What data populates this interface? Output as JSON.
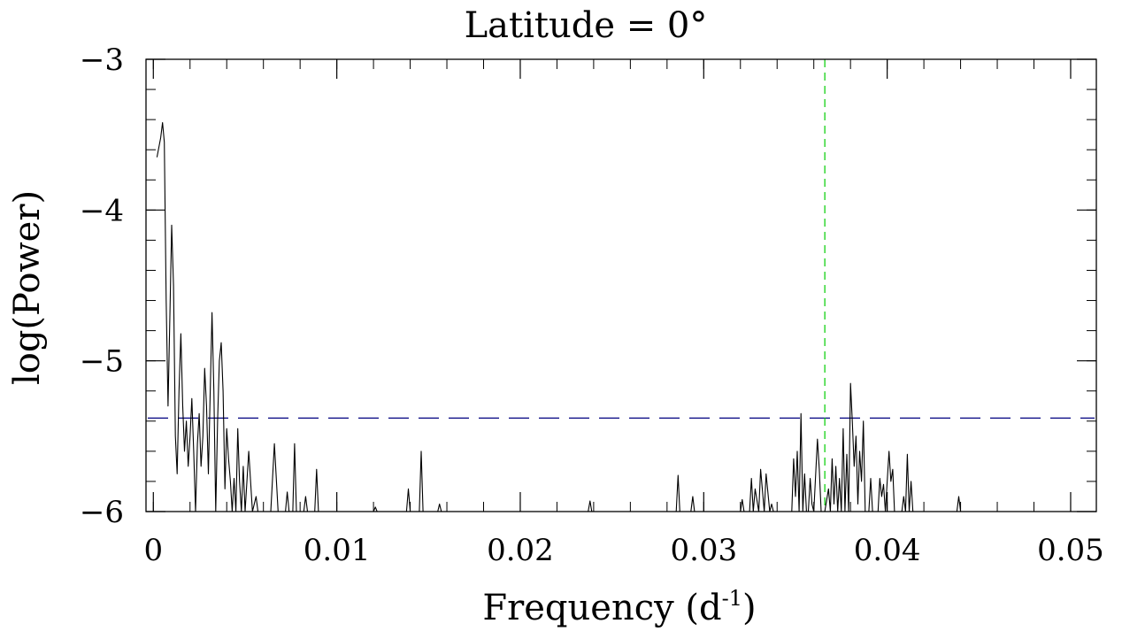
{
  "chart_data": {
    "type": "line",
    "title": "Latitude = 0°",
    "xlabel": "Frequency (d⁻¹)",
    "xlabel_main": "Frequency (d",
    "xlabel_sup": "-1",
    "xlabel_close": ")",
    "ylabel": "log(Power)",
    "xlim": [
      -0.0004,
      0.0514
    ],
    "ylim": [
      -6,
      -3
    ],
    "x_ticks": [
      0,
      0.01,
      0.02,
      0.03,
      0.04,
      0.05
    ],
    "x_tick_labels": [
      "0",
      "0.01",
      "0.02",
      "0.03",
      "0.04",
      "0.05"
    ],
    "y_ticks": [
      -3,
      -4,
      -5,
      -6
    ],
    "y_tick_labels": [
      "−3",
      "−4",
      "−5",
      "−6"
    ],
    "x_minor_step": 0.002,
    "y_minor_step": 0.2,
    "grid": false,
    "legend": "none",
    "colors": {
      "series": "#000000",
      "threshold": "#000080",
      "marker": "#00cc00"
    },
    "threshold_level": -5.38,
    "marker_frequency": 0.0366,
    "series": [
      {
        "values": [
          [
            0.0002,
            -3.65
          ],
          [
            0.0004,
            -3.52
          ],
          [
            0.0005,
            -3.42
          ],
          [
            0.0006,
            -3.55
          ],
          [
            0.0007,
            -4.6
          ],
          [
            0.0008,
            -5.3
          ],
          [
            0.0009,
            -4.7
          ],
          [
            0.001,
            -4.1
          ],
          [
            0.0011,
            -4.5
          ],
          [
            0.0012,
            -5.5
          ],
          [
            0.0013,
            -5.75
          ],
          [
            0.0014,
            -5.2
          ],
          [
            0.0015,
            -4.82
          ],
          [
            0.0016,
            -5.3
          ],
          [
            0.0017,
            -5.6
          ],
          [
            0.0018,
            -5.4
          ],
          [
            0.0019,
            -5.7
          ],
          [
            0.002,
            -5.5
          ],
          [
            0.0021,
            -5.25
          ],
          [
            0.0022,
            -5.6
          ],
          [
            0.0023,
            -6.0
          ],
          [
            0.0024,
            -5.55
          ],
          [
            0.0025,
            -5.35
          ],
          [
            0.0026,
            -5.7
          ],
          [
            0.0027,
            -5.5
          ],
          [
            0.0028,
            -5.05
          ],
          [
            0.0029,
            -5.3
          ],
          [
            0.003,
            -5.75
          ],
          [
            0.0031,
            -5.2
          ],
          [
            0.0032,
            -4.68
          ],
          [
            0.0033,
            -5.2
          ],
          [
            0.0034,
            -6.0
          ],
          [
            0.0035,
            -5.4
          ],
          [
            0.0036,
            -5.0
          ],
          [
            0.0037,
            -4.88
          ],
          [
            0.0038,
            -5.2
          ],
          [
            0.0039,
            -5.85
          ],
          [
            0.004,
            -5.45
          ],
          [
            0.0041,
            -5.65
          ],
          [
            0.0042,
            -5.8
          ],
          [
            0.0043,
            -6.0
          ],
          [
            0.0044,
            -5.78
          ],
          [
            0.0045,
            -6.0
          ],
          [
            0.0046,
            -5.45
          ],
          [
            0.0047,
            -5.8
          ],
          [
            0.0048,
            -6.0
          ],
          [
            0.0049,
            -5.7
          ],
          [
            0.005,
            -6.0
          ],
          [
            0.0052,
            -5.6
          ],
          [
            0.0054,
            -6.0
          ],
          [
            0.0056,
            -5.9
          ],
          [
            0.0057,
            -6.0
          ],
          [
            0.0064,
            -6.0
          ],
          [
            0.0066,
            -5.55
          ],
          [
            0.0068,
            -6.0
          ],
          [
            0.0072,
            -6.0
          ],
          [
            0.0073,
            -5.87
          ],
          [
            0.0074,
            -6.0
          ],
          [
            0.0076,
            -6.0
          ],
          [
            0.0077,
            -5.55
          ],
          [
            0.0078,
            -6.0
          ],
          [
            0.0082,
            -6.0
          ],
          [
            0.0083,
            -5.9
          ],
          [
            0.0084,
            -6.0
          ],
          [
            0.0088,
            -6.0
          ],
          [
            0.0089,
            -5.72
          ],
          [
            0.009,
            -6.0
          ],
          [
            0.012,
            -6.0
          ],
          [
            0.0121,
            -5.97
          ],
          [
            0.0122,
            -6.0
          ],
          [
            0.0138,
            -6.0
          ],
          [
            0.0139,
            -5.85
          ],
          [
            0.014,
            -6.0
          ],
          [
            0.0145,
            -6.0
          ],
          [
            0.0146,
            -5.6
          ],
          [
            0.0147,
            -6.0
          ],
          [
            0.0155,
            -6.0
          ],
          [
            0.0156,
            -5.95
          ],
          [
            0.0157,
            -6.0
          ],
          [
            0.0237,
            -6.0
          ],
          [
            0.0238,
            -5.93
          ],
          [
            0.0239,
            -6.0
          ],
          [
            0.0285,
            -6.0
          ],
          [
            0.0286,
            -5.76
          ],
          [
            0.0287,
            -6.0
          ],
          [
            0.0293,
            -6.0
          ],
          [
            0.0294,
            -5.9
          ],
          [
            0.0295,
            -6.0
          ],
          [
            0.032,
            -6.0
          ],
          [
            0.0321,
            -5.92
          ],
          [
            0.0322,
            -6.0
          ],
          [
            0.0325,
            -6.0
          ],
          [
            0.0326,
            -5.78
          ],
          [
            0.0327,
            -6.0
          ],
          [
            0.0328,
            -5.85
          ],
          [
            0.033,
            -6.0
          ],
          [
            0.0331,
            -5.72
          ],
          [
            0.0333,
            -6.0
          ],
          [
            0.0334,
            -5.75
          ],
          [
            0.0336,
            -6.0
          ],
          [
            0.0337,
            -5.95
          ],
          [
            0.0338,
            -6.0
          ],
          [
            0.0348,
            -6.0
          ],
          [
            0.0349,
            -5.65
          ],
          [
            0.035,
            -5.9
          ],
          [
            0.0351,
            -5.6
          ],
          [
            0.0352,
            -6.0
          ],
          [
            0.0353,
            -5.35
          ],
          [
            0.0354,
            -6.0
          ],
          [
            0.0355,
            -5.75
          ],
          [
            0.0356,
            -6.0
          ],
          [
            0.0357,
            -6.0
          ],
          [
            0.0358,
            -5.78
          ],
          [
            0.0359,
            -5.95
          ],
          [
            0.036,
            -6.0
          ],
          [
            0.0362,
            -5.52
          ],
          [
            0.0363,
            -5.72
          ],
          [
            0.0364,
            -6.0
          ],
          [
            0.0366,
            -6.0
          ],
          [
            0.0368,
            -5.85
          ],
          [
            0.0369,
            -6.0
          ],
          [
            0.037,
            -5.65
          ],
          [
            0.0371,
            -5.95
          ],
          [
            0.0372,
            -5.7
          ],
          [
            0.0373,
            -6.0
          ],
          [
            0.0374,
            -5.78
          ],
          [
            0.0375,
            -6.0
          ],
          [
            0.0376,
            -5.45
          ],
          [
            0.0377,
            -6.0
          ],
          [
            0.0378,
            -5.62
          ],
          [
            0.0379,
            -6.0
          ],
          [
            0.038,
            -5.15
          ],
          [
            0.0381,
            -5.4
          ],
          [
            0.0382,
            -5.7
          ],
          [
            0.0383,
            -5.5
          ],
          [
            0.0384,
            -5.95
          ],
          [
            0.0385,
            -5.6
          ],
          [
            0.0386,
            -5.8
          ],
          [
            0.0387,
            -5.4
          ],
          [
            0.0388,
            -6.0
          ],
          [
            0.039,
            -6.0
          ],
          [
            0.0391,
            -5.78
          ],
          [
            0.0392,
            -6.0
          ],
          [
            0.0395,
            -6.0
          ],
          [
            0.0396,
            -5.78
          ],
          [
            0.0397,
            -5.9
          ],
          [
            0.0398,
            -5.82
          ],
          [
            0.0399,
            -6.0
          ],
          [
            0.0401,
            -5.6
          ],
          [
            0.0402,
            -5.8
          ],
          [
            0.0403,
            -5.72
          ],
          [
            0.0404,
            -6.0
          ],
          [
            0.0408,
            -6.0
          ],
          [
            0.0409,
            -5.9
          ],
          [
            0.041,
            -6.0
          ],
          [
            0.0411,
            -5.62
          ],
          [
            0.0412,
            -6.0
          ],
          [
            0.0413,
            -5.8
          ],
          [
            0.0414,
            -6.0
          ],
          [
            0.0438,
            -6.0
          ],
          [
            0.0439,
            -5.9
          ],
          [
            0.044,
            -6.0
          ]
        ]
      }
    ]
  }
}
